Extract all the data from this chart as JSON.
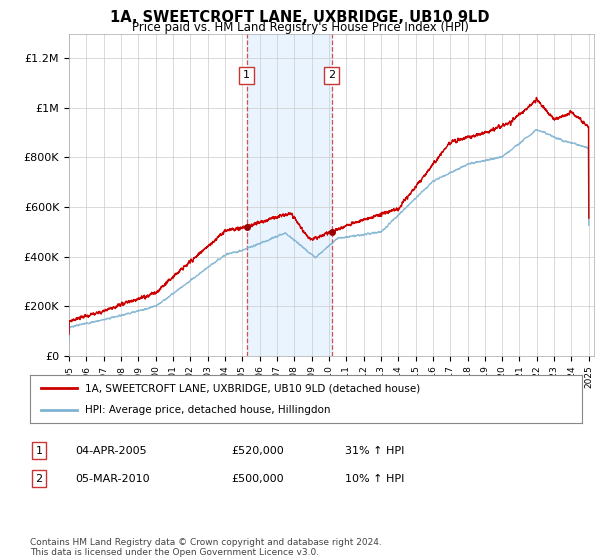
{
  "title": "1A, SWEETCROFT LANE, UXBRIDGE, UB10 9LD",
  "subtitle": "Price paid vs. HM Land Registry's House Price Index (HPI)",
  "ylabel_ticks": [
    "£0",
    "£200K",
    "£400K",
    "£600K",
    "£800K",
    "£1M",
    "£1.2M"
  ],
  "ytick_values": [
    0,
    200000,
    400000,
    600000,
    800000,
    1000000,
    1200000
  ],
  "ylim": [
    0,
    1300000
  ],
  "xlim_start": 1995,
  "xlim_end": 2025.3,
  "sale1_year": 2005.25,
  "sale1_price": 520000,
  "sale1_label": "1",
  "sale2_year": 2010.17,
  "sale2_price": 500000,
  "sale2_label": "2",
  "legend_line1": "1A, SWEETCROFT LANE, UXBRIDGE, UB10 9LD (detached house)",
  "legend_line2": "HPI: Average price, detached house, Hillingdon",
  "table_row1": [
    "1",
    "04-APR-2005",
    "£520,000",
    "31% ↑ HPI"
  ],
  "table_row2": [
    "2",
    "05-MAR-2010",
    "£500,000",
    "10% ↑ HPI"
  ],
  "footer": "Contains HM Land Registry data © Crown copyright and database right 2024.\nThis data is licensed under the Open Government Licence v3.0.",
  "line_red": "#cc0000",
  "line_blue": "#7fb3d3",
  "shade_color": "#ddeeff",
  "bg_color": "#f0f4f8"
}
